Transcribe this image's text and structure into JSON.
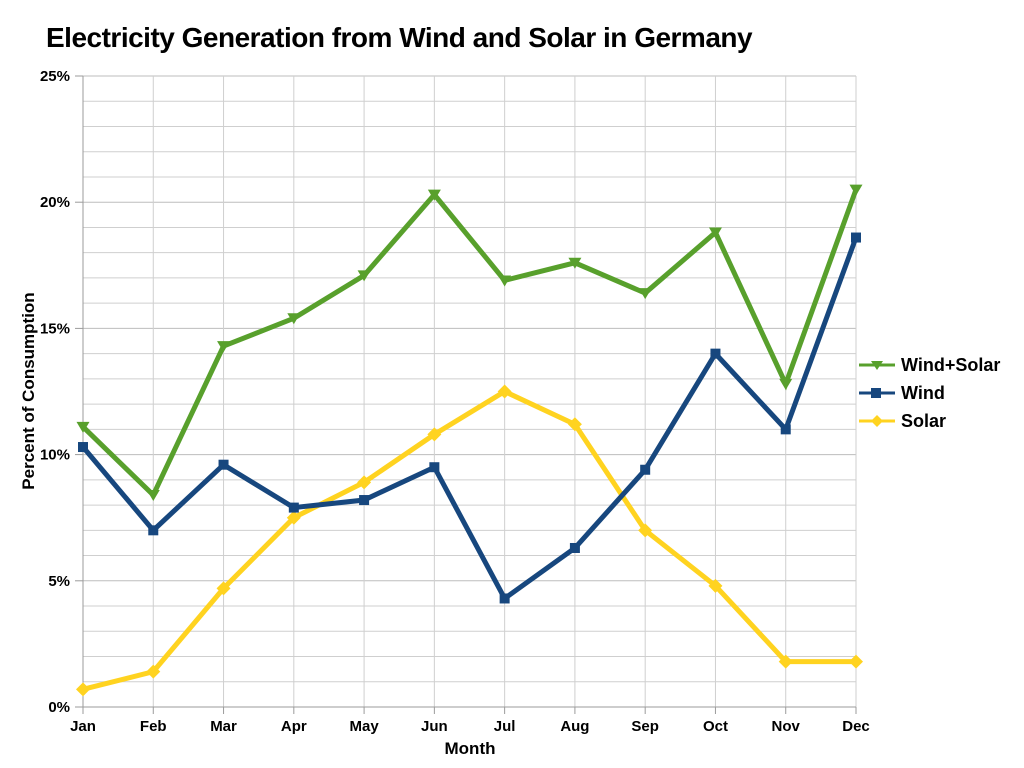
{
  "chart_data": {
    "type": "line",
    "title": "Electricity Generation from Wind and Solar in Germany",
    "xlabel": "Month",
    "ylabel": "Percent of Consumption",
    "categories": [
      "Jan",
      "Feb",
      "Mar",
      "Apr",
      "May",
      "Jun",
      "Jul",
      "Aug",
      "Sep",
      "Oct",
      "Nov",
      "Dec"
    ],
    "y_axis": {
      "min": 0,
      "max": 25,
      "major_step": 5,
      "minor_step": 1,
      "tick_labels": [
        "0%",
        "5%",
        "10%",
        "15%",
        "20%",
        "25%"
      ]
    },
    "grid": {
      "horizontal_minor": true,
      "vertical_per_month": true
    },
    "legend_position": "right",
    "series": [
      {
        "name": "Wind+Solar",
        "color": "#58A02C",
        "marker": "triangle-down",
        "values": [
          11.1,
          8.4,
          14.3,
          15.4,
          17.1,
          20.3,
          16.9,
          17.6,
          16.4,
          18.8,
          12.8,
          20.5
        ]
      },
      {
        "name": "Wind",
        "color": "#17477E",
        "marker": "square",
        "values": [
          10.3,
          7.0,
          9.6,
          7.9,
          8.2,
          9.5,
          4.3,
          6.3,
          9.4,
          14.0,
          11.0,
          18.6
        ]
      },
      {
        "name": "Solar",
        "color": "#FFD320",
        "marker": "diamond",
        "values": [
          0.7,
          1.4,
          4.7,
          7.5,
          8.9,
          10.8,
          12.5,
          11.2,
          7.0,
          4.8,
          1.8,
          1.8
        ]
      }
    ],
    "colors": {
      "grid_minor": "#CFCFCF",
      "grid_major": "#BDBDBD",
      "axis": "#9B9B9B",
      "text": "#000000",
      "background": "#FFFFFF"
    }
  }
}
